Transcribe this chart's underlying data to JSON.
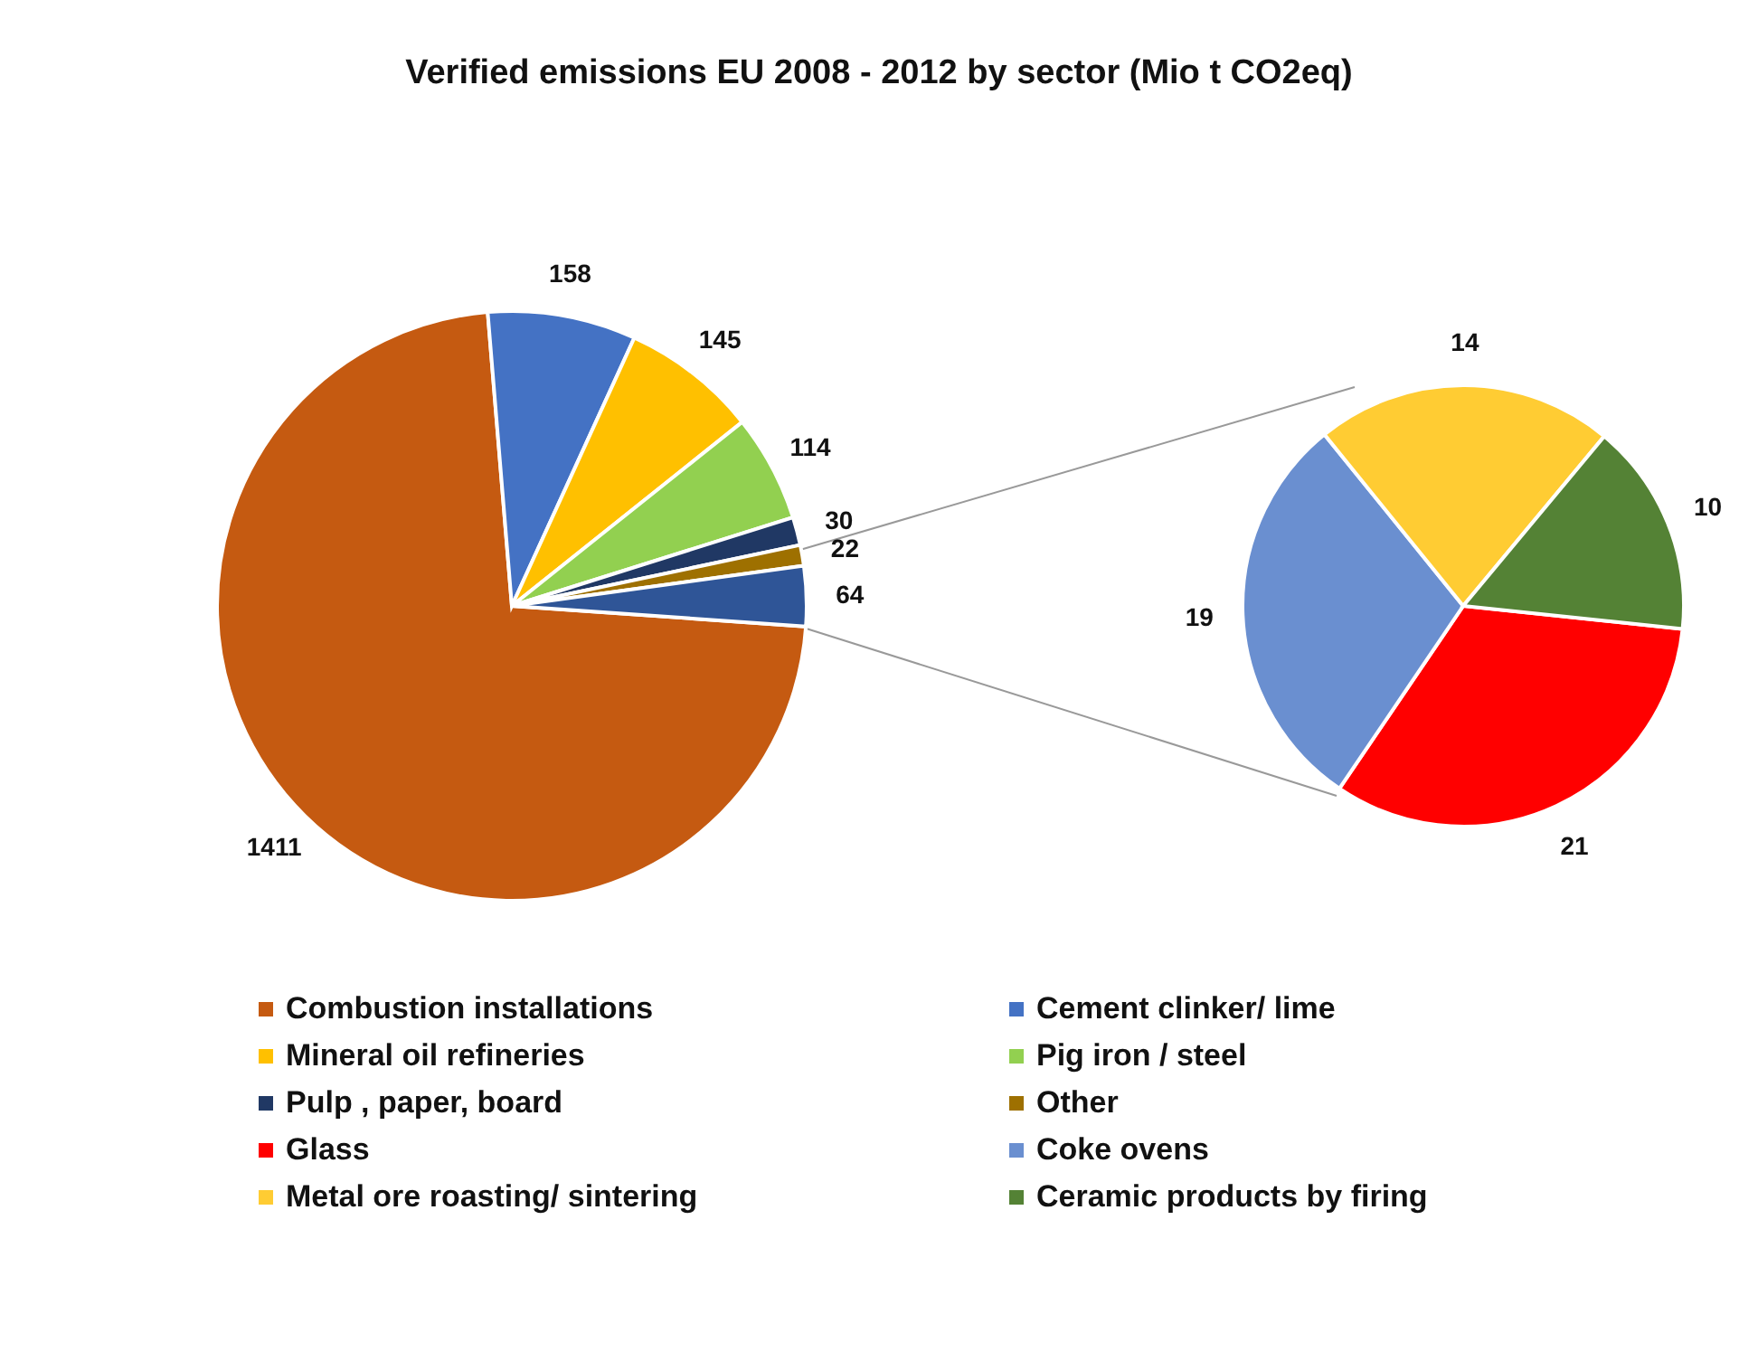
{
  "chart_data": [
    {
      "type": "pie",
      "title": "Verified emissions EU 2008 - 2012 by sector (Mio t CO2eq)",
      "categories": [
        "Combustion installations",
        "Cement clinker/ lime",
        "Mineral oil refineries",
        "Pig iron / steel",
        "Pulp , paper, board",
        "Other",
        null
      ],
      "values": [
        1411,
        158,
        145,
        114,
        30,
        22,
        64
      ],
      "colors": [
        "#c55a11",
        "#4472c4",
        "#ffc000",
        "#92d050",
        "#203864",
        "#9e7000",
        "#2f5597"
      ],
      "data_labels": true,
      "legend": "bottom"
    },
    {
      "type": "pie",
      "categories": [
        "Glass",
        "Coke ovens",
        "Metal ore roasting/ sintering",
        "Ceramic products by firing"
      ],
      "values": [
        21,
        19,
        14,
        10
      ],
      "colors": [
        "#ff0000",
        "#6a8fd0",
        "#ffcc33",
        "#548235"
      ],
      "data_labels": true,
      "legend": "bottom"
    }
  ]
}
